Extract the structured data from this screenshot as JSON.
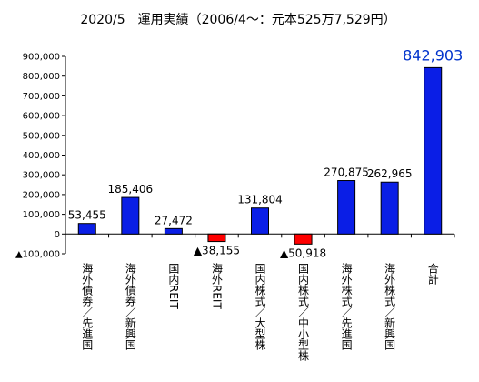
{
  "chart_data": {
    "type": "bar",
    "title": "2020/5　運用実績（2006/4～：元本525万7,529円）",
    "categories": [
      "海外債券／先進国",
      "海外債券／新興国",
      "国内REIT",
      "海外REIT",
      "国内株式／大型株",
      "国内株式／中小型株",
      "海外株式／先進国",
      "海外株式／新興国",
      "合計"
    ],
    "values": [
      53455,
      185406,
      27472,
      -38155,
      131804,
      -50918,
      270875,
      262965,
      842903
    ],
    "data_labels": [
      "53,455",
      "185,406",
      "27,472",
      "▲38,155",
      "131,804",
      "▲50,918",
      "270,875",
      "262,965",
      "842,903"
    ],
    "ylim": [
      -100000,
      900000
    ],
    "yticks": [
      -100000,
      0,
      100000,
      200000,
      300000,
      400000,
      500000,
      600000,
      700000,
      800000,
      900000
    ],
    "ytick_labels": [
      "▲100,000",
      "0",
      "100,000",
      "200,000",
      "300,000",
      "400,000",
      "500,000",
      "600,000",
      "700,000",
      "800,000",
      "900,000"
    ],
    "xlabel": "",
    "ylabel": "",
    "grid": false,
    "colors": {
      "positive": "#0a1ee6",
      "negative": "#ff0000",
      "total_label": "#0033cc",
      "bar_border": "#000000"
    }
  }
}
